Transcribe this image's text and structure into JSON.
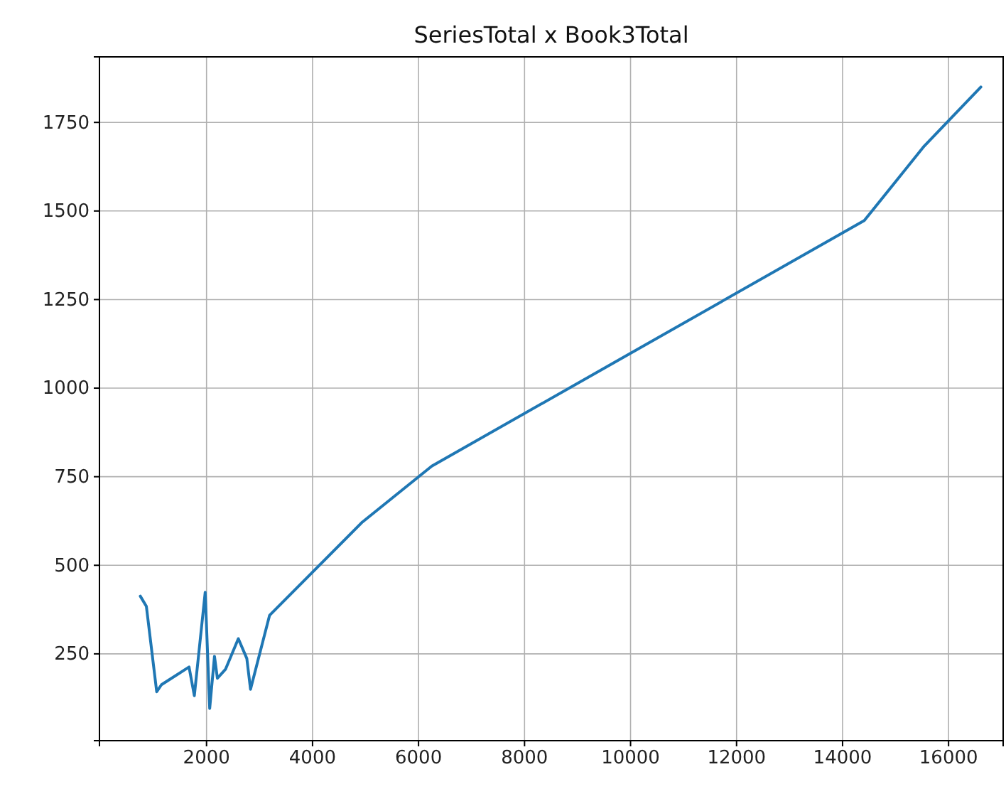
{
  "chart_data": {
    "type": "line",
    "title": "SeriesTotal x Book3Total",
    "x": [
      750,
      865,
      1060,
      1150,
      1670,
      1770,
      1975,
      2060,
      2150,
      2205,
      2360,
      2600,
      2760,
      2830,
      3190,
      4940,
      6250,
      14410,
      15540,
      16610
    ],
    "series": [
      {
        "color": "#1f77b4",
        "values": [
          413,
          384,
          143,
          163,
          213,
          132,
          424,
          96,
          243,
          181,
          207,
          293,
          237,
          150,
          359,
          622,
          780,
          1473,
          1683,
          1850
        ]
      }
    ],
    "xlim": [
      -20,
      17030
    ],
    "xticks": [
      2000,
      4000,
      6000,
      8000,
      10000,
      12000,
      14000,
      16000
    ],
    "ylim": [
      5,
      1935
    ],
    "yticks": [
      250,
      500,
      750,
      1000,
      1250,
      1500,
      1750
    ],
    "grid": true,
    "marker": "none",
    "line_style": "solid"
  }
}
